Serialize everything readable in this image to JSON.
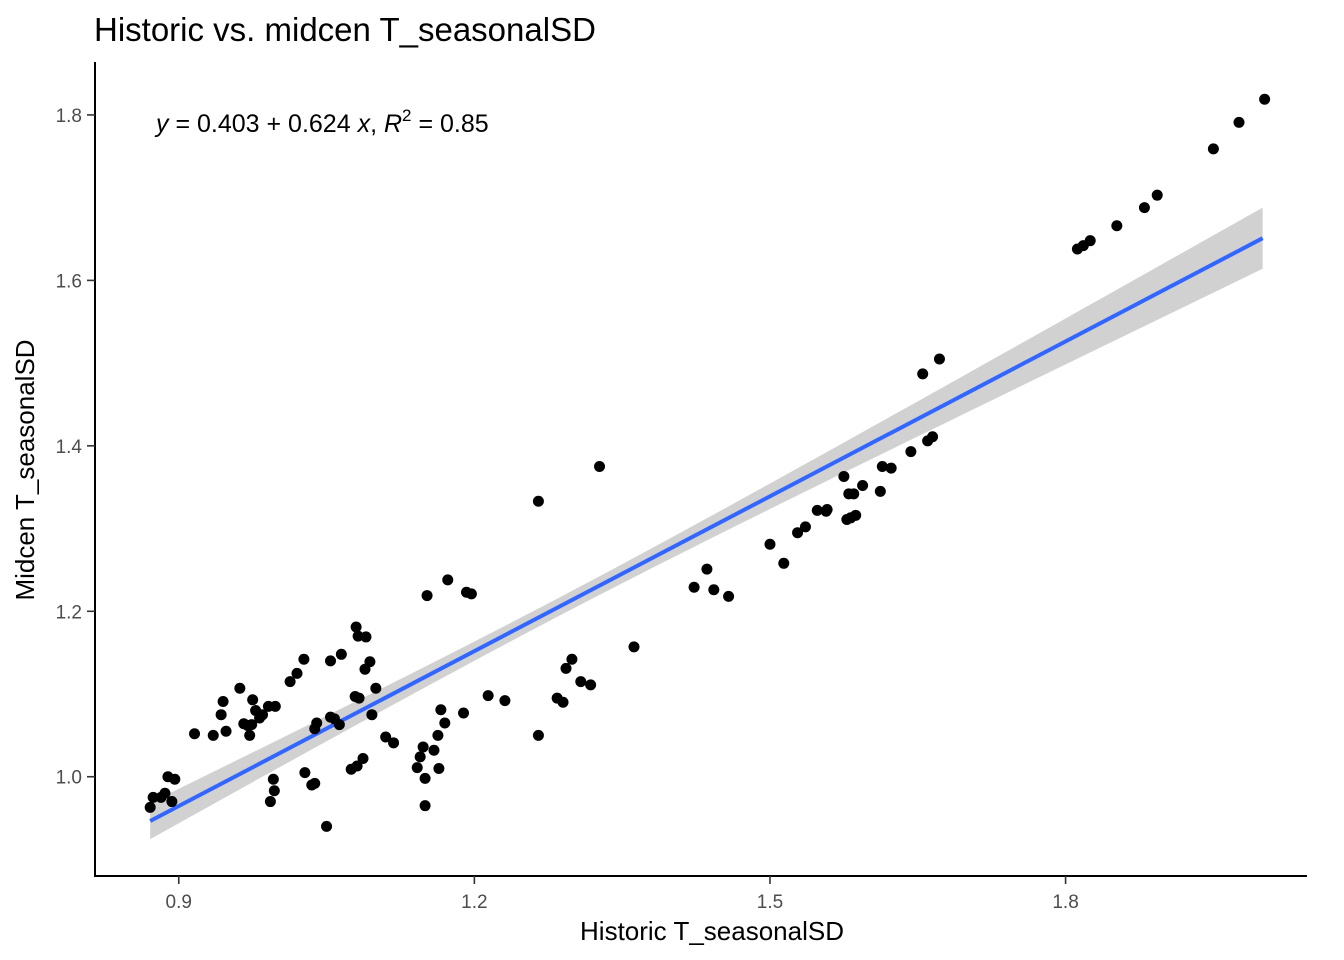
{
  "chart_data": {
    "type": "scatter",
    "title": "Historic vs. midcen T_seasonalSD",
    "xlabel": "Historic T_seasonalSD",
    "ylabel": "Midcen T_seasonalSD",
    "xlim": [
      0.815,
      2.045
    ],
    "ylim": [
      0.88,
      1.864
    ],
    "xticks": [
      0.9,
      1.2,
      1.5,
      1.8
    ],
    "yticks": [
      1.0,
      1.2,
      1.4,
      1.6,
      1.8
    ],
    "xtick_labels": [
      "0.9",
      "1.2",
      "1.5",
      "1.8"
    ],
    "ytick_labels": [
      "1.0",
      "1.2",
      "1.4",
      "1.6",
      "1.8"
    ],
    "grid": false,
    "annotation": {
      "y_sym": "y",
      "eq_mid": " = 0.403 + 0.624 ",
      "x_sym": "x",
      "comma": ", ",
      "r_sym": "R",
      "r_exp": "2",
      "r_val": " = 0.85"
    },
    "fit": {
      "intercept": 0.403,
      "slope": 0.624,
      "x_range": [
        0.871,
        2.0
      ],
      "band_half_width_at_ends": [
        0.022,
        0.037
      ],
      "band_half_width_at_center": 0.011,
      "center_x": 1.28,
      "color": "#3366FF",
      "band_color": "#999999"
    },
    "point_color": "#000000",
    "points": [
      [
        0.871,
        0.963
      ],
      [
        0.874,
        0.975
      ],
      [
        0.882,
        0.975
      ],
      [
        0.886,
        0.98
      ],
      [
        0.889,
        1.0
      ],
      [
        0.893,
        0.97
      ],
      [
        0.896,
        0.997
      ],
      [
        0.916,
        1.052
      ],
      [
        0.935,
        1.05
      ],
      [
        0.943,
        1.075
      ],
      [
        0.945,
        1.091
      ],
      [
        0.948,
        1.055
      ],
      [
        0.962,
        1.107
      ],
      [
        0.966,
        1.064
      ],
      [
        0.97,
        1.062
      ],
      [
        0.972,
        1.05
      ],
      [
        0.974,
        1.063
      ],
      [
        0.975,
        1.093
      ],
      [
        0.978,
        1.08
      ],
      [
        0.982,
        1.071
      ],
      [
        0.985,
        1.075
      ],
      [
        0.991,
        1.085
      ],
      [
        0.993,
        0.97
      ],
      [
        0.996,
        0.997
      ],
      [
        0.997,
        0.983
      ],
      [
        0.998,
        1.085
      ],
      [
        1.013,
        1.115
      ],
      [
        1.02,
        1.125
      ],
      [
        1.027,
        1.142
      ],
      [
        1.028,
        1.005
      ],
      [
        1.035,
        0.99
      ],
      [
        1.038,
        0.992
      ],
      [
        1.038,
        1.058
      ],
      [
        1.04,
        1.065
      ],
      [
        1.05,
        0.94
      ],
      [
        1.054,
        1.072
      ],
      [
        1.054,
        1.14
      ],
      [
        1.058,
        1.07
      ],
      [
        1.063,
        1.063
      ],
      [
        1.065,
        1.148
      ],
      [
        1.075,
        1.009
      ],
      [
        1.079,
        1.097
      ],
      [
        1.08,
        1.181
      ],
      [
        1.081,
        1.013
      ],
      [
        1.082,
        1.17
      ],
      [
        1.083,
        1.095
      ],
      [
        1.087,
        1.022
      ],
      [
        1.089,
        1.13
      ],
      [
        1.09,
        1.169
      ],
      [
        1.094,
        1.139
      ],
      [
        1.096,
        1.075
      ],
      [
        1.1,
        1.107
      ],
      [
        1.11,
        1.048
      ],
      [
        1.118,
        1.041
      ],
      [
        1.142,
        1.011
      ],
      [
        1.145,
        1.024
      ],
      [
        1.148,
        1.036
      ],
      [
        1.15,
        0.998
      ],
      [
        1.15,
        0.965
      ],
      [
        1.152,
        1.219
      ],
      [
        1.159,
        1.032
      ],
      [
        1.163,
        1.05
      ],
      [
        1.164,
        1.01
      ],
      [
        1.166,
        1.081
      ],
      [
        1.17,
        1.065
      ],
      [
        1.173,
        1.238
      ],
      [
        1.189,
        1.077
      ],
      [
        1.192,
        1.223
      ],
      [
        1.197,
        1.221
      ],
      [
        1.214,
        1.098
      ],
      [
        1.231,
        1.092
      ],
      [
        1.265,
        1.05
      ],
      [
        1.265,
        1.333
      ],
      [
        1.284,
        1.095
      ],
      [
        1.29,
        1.09
      ],
      [
        1.293,
        1.131
      ],
      [
        1.299,
        1.142
      ],
      [
        1.308,
        1.115
      ],
      [
        1.318,
        1.111
      ],
      [
        1.327,
        1.375
      ],
      [
        1.362,
        1.157
      ],
      [
        1.423,
        1.229
      ],
      [
        1.436,
        1.251
      ],
      [
        1.443,
        1.226
      ],
      [
        1.458,
        1.218
      ],
      [
        1.5,
        1.281
      ],
      [
        1.514,
        1.258
      ],
      [
        1.528,
        1.295
      ],
      [
        1.536,
        1.302
      ],
      [
        1.548,
        1.322
      ],
      [
        1.557,
        1.321
      ],
      [
        1.558,
        1.323
      ],
      [
        1.575,
        1.363
      ],
      [
        1.578,
        1.311
      ],
      [
        1.58,
        1.342
      ],
      [
        1.582,
        1.313
      ],
      [
        1.585,
        1.342
      ],
      [
        1.587,
        1.316
      ],
      [
        1.594,
        1.352
      ],
      [
        1.612,
        1.345
      ],
      [
        1.614,
        1.375
      ],
      [
        1.623,
        1.373
      ],
      [
        1.643,
        1.393
      ],
      [
        1.655,
        1.487
      ],
      [
        1.66,
        1.406
      ],
      [
        1.665,
        1.411
      ],
      [
        1.672,
        1.505
      ],
      [
        1.812,
        1.638
      ],
      [
        1.818,
        1.642
      ],
      [
        1.825,
        1.648
      ],
      [
        1.852,
        1.666
      ],
      [
        1.88,
        1.688
      ],
      [
        1.893,
        1.703
      ],
      [
        1.95,
        1.759
      ],
      [
        1.976,
        1.791
      ],
      [
        2.002,
        1.819
      ]
    ]
  }
}
